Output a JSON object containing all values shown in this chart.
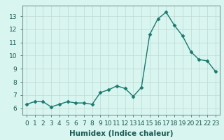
{
  "x": [
    0,
    1,
    2,
    3,
    4,
    5,
    6,
    7,
    8,
    9,
    10,
    11,
    12,
    13,
    14,
    15,
    16,
    17,
    18,
    19,
    20,
    21,
    22,
    23
  ],
  "y": [
    6.3,
    6.5,
    6.5,
    6.1,
    6.3,
    6.5,
    6.4,
    6.4,
    6.3,
    7.2,
    7.4,
    7.7,
    7.5,
    6.9,
    7.6,
    11.6,
    12.8,
    13.3,
    12.3,
    11.5,
    10.3,
    9.7,
    9.6,
    8.8
  ],
  "line_color": "#1a7a6e",
  "marker": "D",
  "markersize": 2.5,
  "linewidth": 1.0,
  "xlabel": "Humidex (Indice chaleur)",
  "ylim": [
    5.5,
    13.8
  ],
  "xlim": [
    -0.5,
    23.5
  ],
  "yticks": [
    6,
    7,
    8,
    9,
    10,
    11,
    12,
    13
  ],
  "xticks": [
    0,
    1,
    2,
    3,
    4,
    5,
    6,
    7,
    8,
    9,
    10,
    11,
    12,
    13,
    14,
    15,
    16,
    17,
    18,
    19,
    20,
    21,
    22,
    23
  ],
  "bg_color": "#d8f5f0",
  "grid_color": "#c0d8d4",
  "xlabel_fontsize": 7.5,
  "tick_fontsize": 6.5
}
